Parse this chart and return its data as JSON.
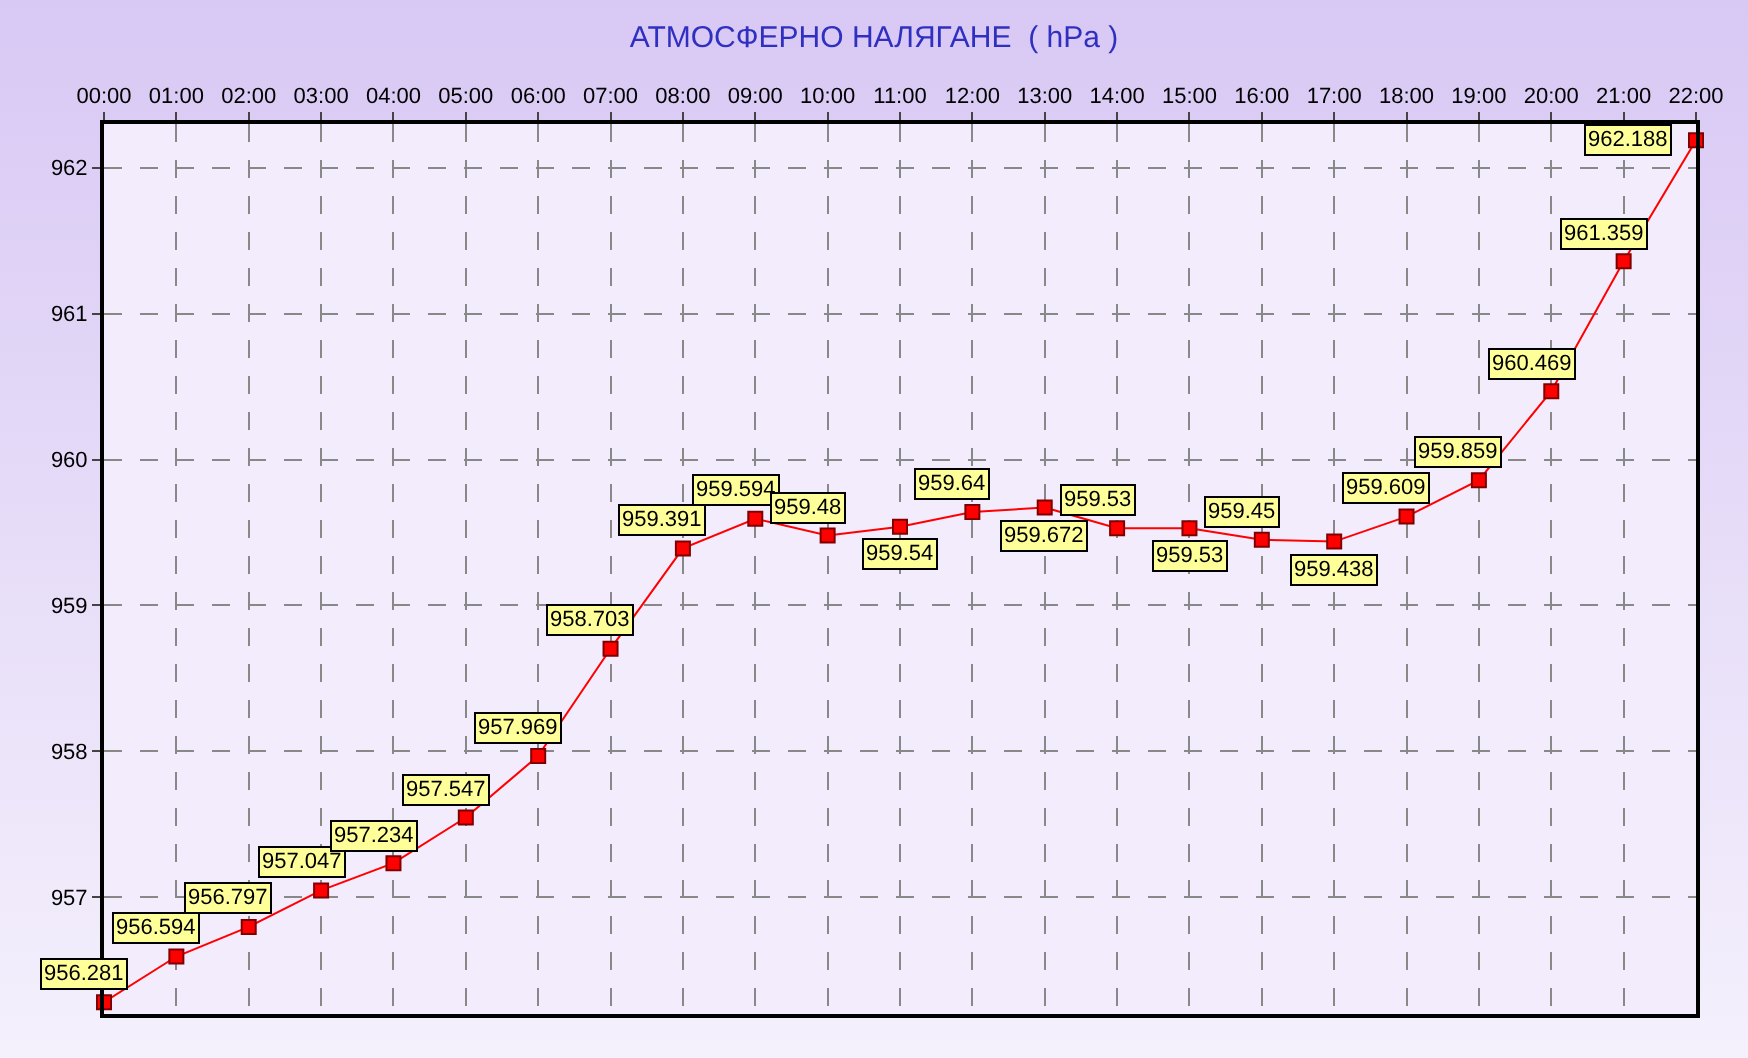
{
  "chart_data": {
    "type": "line",
    "title": "АТМОСФЕРНО НАЛЯГАНЕ  ( hPa )",
    "x": [
      0,
      1,
      2,
      3,
      4,
      5,
      6,
      7,
      8,
      9,
      10,
      11,
      12,
      13,
      14,
      15,
      16,
      17,
      18,
      19,
      20,
      21,
      22
    ],
    "series": [
      {
        "color": "#ff0000",
        "values": [
          956.281,
          956.594,
          956.797,
          957.047,
          957.234,
          957.547,
          957.969,
          958.703,
          959.391,
          959.594,
          959.48,
          959.54,
          959.64,
          959.672,
          959.53,
          959.53,
          959.45,
          959.438,
          959.609,
          959.859,
          960.469,
          961.359,
          962.188
        ]
      }
    ],
    "xlim": [
      0,
      22
    ],
    "xticks": [
      {
        "value": 0,
        "label": "00:00"
      },
      {
        "value": 1,
        "label": "01:00"
      },
      {
        "value": 2,
        "label": "02:00"
      },
      {
        "value": 3,
        "label": "03:00"
      },
      {
        "value": 4,
        "label": "04:00"
      },
      {
        "value": 5,
        "label": "05:00"
      },
      {
        "value": 6,
        "label": "06:00"
      },
      {
        "value": 7,
        "label": "07:00"
      },
      {
        "value": 8,
        "label": "08:00"
      },
      {
        "value": 9,
        "label": "09:00"
      },
      {
        "value": 10,
        "label": "10:00"
      },
      {
        "value": 11,
        "label": "11:00"
      },
      {
        "value": 12,
        "label": "12:00"
      },
      {
        "value": 13,
        "label": "13:00"
      },
      {
        "value": 14,
        "label": "14:00"
      },
      {
        "value": 15,
        "label": "15:00"
      },
      {
        "value": 16,
        "label": "16:00"
      },
      {
        "value": 17,
        "label": "17:00"
      },
      {
        "value": 18,
        "label": "18:00"
      },
      {
        "value": 19,
        "label": "19:00"
      },
      {
        "value": 20,
        "label": "20:00"
      },
      {
        "value": 21,
        "label": "21:00"
      },
      {
        "value": 22,
        "label": "22:00"
      }
    ],
    "ylim": [
      956.2,
      962.3
    ],
    "yticks": [
      957,
      958,
      959,
      960,
      961,
      962
    ],
    "grid": true,
    "marker": "square",
    "line_style": "solid",
    "data_labels": true
  }
}
